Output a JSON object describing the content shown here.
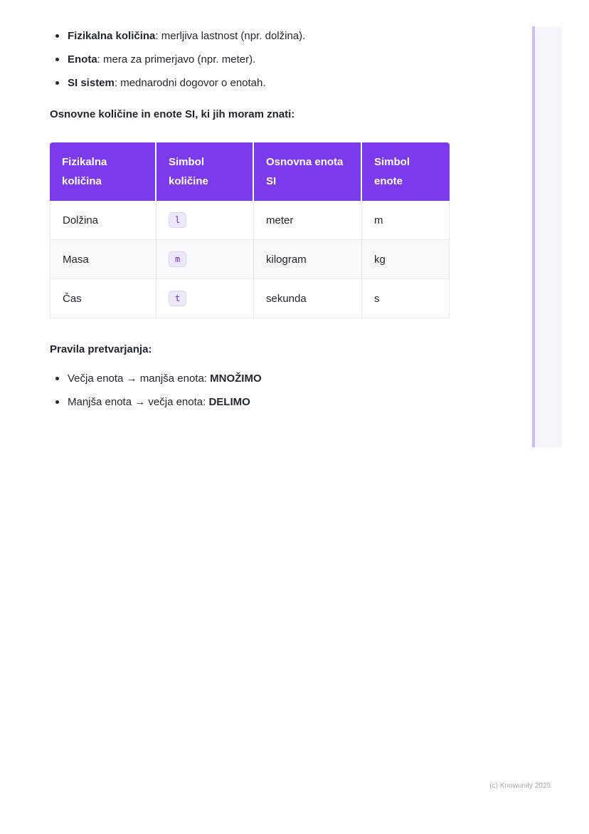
{
  "colors": {
    "table_header_bg": "#7c3aed",
    "chip_text": "#6d28d9",
    "chip_bg": "#ece7fa",
    "row_alt_bg": "#f8f9fb",
    "table_border": "#e7e9ee",
    "edge_line": "#cdbcf0",
    "edge_panel": "#f7f5fc",
    "body_text": "#212631"
  },
  "intro_bullets": [
    {
      "term": "Fizikalna količina",
      "rest": ": merljiva lastnost (npr. dolžina)."
    },
    {
      "term": "Enota",
      "rest": ": mera za primerjavo (npr. meter)."
    },
    {
      "term": "SI sistem",
      "rest": ": mednarodni dogovor o enotah."
    }
  ],
  "sections": {
    "units_heading": "Osnovne količine in enote SI, ki jih moram znati:",
    "rules_heading": "Pravila pretvarjanja:"
  },
  "table": {
    "headers": [
      "Fizikalna količina",
      "Simbol količine",
      "Osnovna enota SI",
      "Simbol enote"
    ],
    "rows": [
      {
        "quantity": "Dolžina",
        "symbol": "l",
        "unit": "meter",
        "unit_symbol": "m"
      },
      {
        "quantity": "Masa",
        "symbol": "m",
        "unit": "kilogram",
        "unit_symbol": "kg"
      },
      {
        "quantity": "Čas",
        "symbol": "t",
        "unit": "sekunda",
        "unit_symbol": "s"
      }
    ]
  },
  "rules_bullets": [
    {
      "text": "Večja enota → manjša enota: ",
      "emphasis": "MNOŽIMO"
    },
    {
      "text": "Manjša enota → večja enota: ",
      "emphasis": "DELIMO"
    }
  ],
  "footer": "(c) Knowunity 2025"
}
